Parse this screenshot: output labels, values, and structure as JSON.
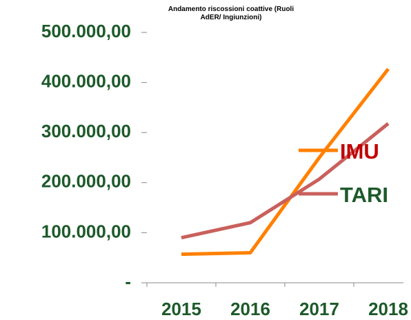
{
  "chart_data": {
    "type": "line",
    "title": "Andamento riscossioni coattive (Ruoli AdER/ Ingiunzioni)",
    "categories": [
      "2015",
      "2016",
      "2017",
      "2018"
    ],
    "series": [
      {
        "name": "IMU",
        "color": "#ff8000",
        "values": [
          57000,
          60000,
          250000,
          427000
        ]
      },
      {
        "name": "TARI",
        "color": "#c9605c",
        "values": [
          90000,
          120000,
          207000,
          318000
        ]
      }
    ],
    "ylim": [
      0,
      500000
    ],
    "yticks": [
      {
        "value": 0,
        "label": "-"
      },
      {
        "value": 100000,
        "label": "100.000,00"
      },
      {
        "value": 200000,
        "label": "200.000,00"
      },
      {
        "value": 300000,
        "label": "300.000,00"
      },
      {
        "value": 400000,
        "label": "400.000,00"
      },
      {
        "value": 500000,
        "label": "500.000,00"
      }
    ],
    "grid": false,
    "legend": "right"
  }
}
